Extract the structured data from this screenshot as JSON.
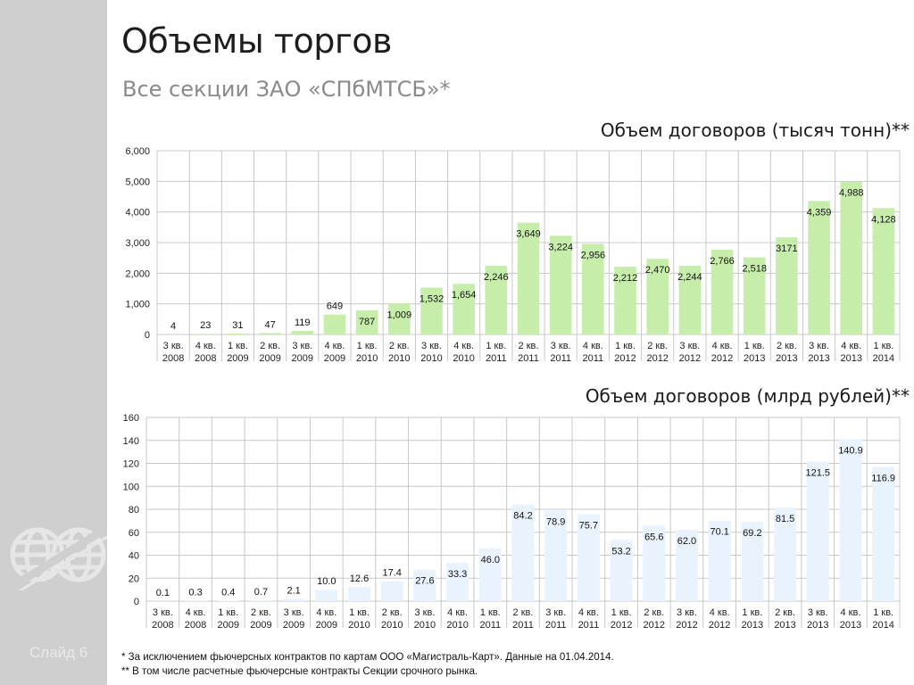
{
  "title": "Объемы торгов",
  "subtitle": "Все секции ЗАО «СПбМТСБ»*",
  "slide_label": "Слайд 6",
  "footnotes": [
    "* За исключением фьючерсных контрактов по картам ООО «Магистраль-Карт».  Данные на 01.04.2014.",
    "** В том числе расчетные фьючерсные контракты Секции срочного рынка."
  ],
  "colors": {
    "sidebar": "#cfcfcf",
    "bar_tonnes": "#c6eeaa",
    "bar_rubles": "#e9f3fd",
    "grid": "#c8c8c8"
  },
  "chart_data": [
    {
      "type": "bar",
      "title": "Объем договоров (тысяч тонн)**",
      "categories": [
        [
          "3 кв.",
          "2008"
        ],
        [
          "4 кв.",
          "2008"
        ],
        [
          "1 кв.",
          "2009"
        ],
        [
          "2 кв.",
          "2009"
        ],
        [
          "3 кв.",
          "2009"
        ],
        [
          "4 кв.",
          "2009"
        ],
        [
          "1 кв.",
          "2010"
        ],
        [
          "2 кв.",
          "2010"
        ],
        [
          "3 кв.",
          "2010"
        ],
        [
          "4 кв.",
          "2010"
        ],
        [
          "1 кв.",
          "2011"
        ],
        [
          "2 кв.",
          "2011"
        ],
        [
          "3 кв.",
          "2011"
        ],
        [
          "4 кв.",
          "2011"
        ],
        [
          "1 кв.",
          "2012"
        ],
        [
          "2 кв.",
          "2012"
        ],
        [
          "3 кв.",
          "2012"
        ],
        [
          "4 кв.",
          "2012"
        ],
        [
          "1 кв.",
          "2013"
        ],
        [
          "2 кв.",
          "2013"
        ],
        [
          "3 кв.",
          "2013"
        ],
        [
          "4 кв.",
          "2013"
        ],
        [
          "1 кв.",
          "2014"
        ]
      ],
      "values": [
        4,
        23,
        31,
        47,
        119,
        649,
        787,
        1009,
        1532,
        1654,
        2246,
        3649,
        3224,
        2956,
        2212,
        2470,
        2244,
        2766,
        2518,
        3171,
        4359,
        4988,
        4128
      ],
      "data_labels": [
        "4",
        "23",
        "31",
        "47",
        "119",
        "649",
        "787",
        "1,009",
        "1,532",
        "1,654",
        "2,246",
        "3,649",
        "3,224",
        "2,956",
        "2,212",
        "2,470",
        "2,244",
        "2,766",
        "2,518",
        "3171",
        "4,359",
        "4,988",
        "4,128"
      ],
      "yticks": [
        "0",
        "1,000",
        "2,000",
        "3,000",
        "4,000",
        "5,000",
        "6,000"
      ],
      "ylim": [
        0,
        6000
      ],
      "grid": true
    },
    {
      "type": "bar",
      "title": "Объем договоров (млрд рублей)**",
      "categories": [
        [
          "3 кв.",
          "2008"
        ],
        [
          "4 кв.",
          "2008"
        ],
        [
          "1 кв.",
          "2009"
        ],
        [
          "2 кв.",
          "2009"
        ],
        [
          "3 кв.",
          "2009"
        ],
        [
          "4 кв.",
          "2009"
        ],
        [
          "1 кв.",
          "2010"
        ],
        [
          "2 кв.",
          "2010"
        ],
        [
          "3 кв.",
          "2010"
        ],
        [
          "4 кв.",
          "2010"
        ],
        [
          "1 кв.",
          "2011"
        ],
        [
          "2 кв.",
          "2011"
        ],
        [
          "3 кв.",
          "2011"
        ],
        [
          "4 кв.",
          "2011"
        ],
        [
          "1 кв.",
          "2012"
        ],
        [
          "2 кв.",
          "2012"
        ],
        [
          "3 кв.",
          "2012"
        ],
        [
          "4 кв.",
          "2012"
        ],
        [
          "1 кв.",
          "2013"
        ],
        [
          "2 кв.",
          "2013"
        ],
        [
          "3 кв.",
          "2013"
        ],
        [
          "4 кв.",
          "2013"
        ],
        [
          "1 кв.",
          "2014"
        ]
      ],
      "values": [
        0.1,
        0.3,
        0.4,
        0.7,
        2.1,
        10.0,
        12.6,
        17.4,
        27.6,
        33.3,
        46.0,
        84.2,
        78.9,
        75.7,
        53.2,
        65.6,
        62.0,
        70.1,
        69.2,
        81.5,
        121.5,
        140.9,
        116.9
      ],
      "data_labels": [
        "0.1",
        "0.3",
        "0.4",
        "0.7",
        "2.1",
        "10.0",
        "12.6",
        "17.4",
        "27.6",
        "33.3",
        "46.0",
        "84.2",
        "78.9",
        "75.7",
        "53.2",
        "65.6",
        "62.0",
        "70.1",
        "69.2",
        "81.5",
        "121.5",
        "140.9",
        "116.9"
      ],
      "yticks": [
        "0",
        "20",
        "40",
        "60",
        "80",
        "100",
        "120",
        "140",
        "160"
      ],
      "ylim": [
        0,
        160
      ],
      "grid": true
    }
  ]
}
